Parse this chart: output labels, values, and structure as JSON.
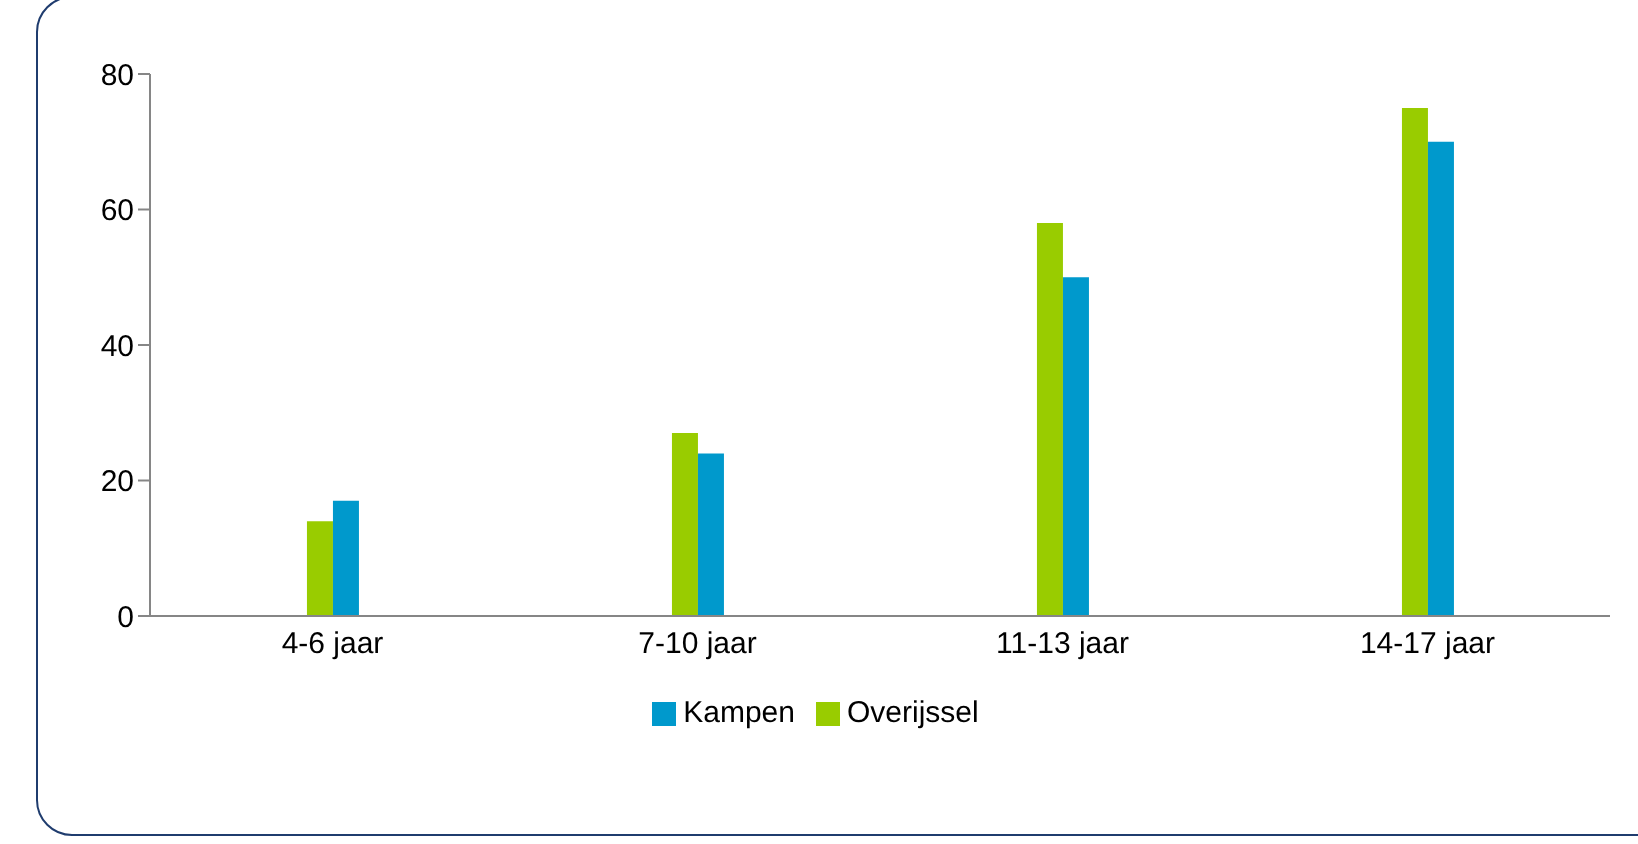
{
  "chart_data": {
    "type": "bar",
    "categories": [
      "4-6 jaar",
      "7-10 jaar",
      "11-13 jaar",
      "14-17 jaar"
    ],
    "series": [
      {
        "name": "Overijssel",
        "color": "#99cc00",
        "values": [
          14,
          27,
          58,
          75
        ]
      },
      {
        "name": "Kampen",
        "color": "#0099cc",
        "values": [
          17,
          24,
          50,
          70
        ]
      }
    ],
    "ylim": [
      0,
      80
    ],
    "yticks": [
      0,
      20,
      40,
      60,
      80
    ],
    "grid": false,
    "legend": "bottom"
  }
}
